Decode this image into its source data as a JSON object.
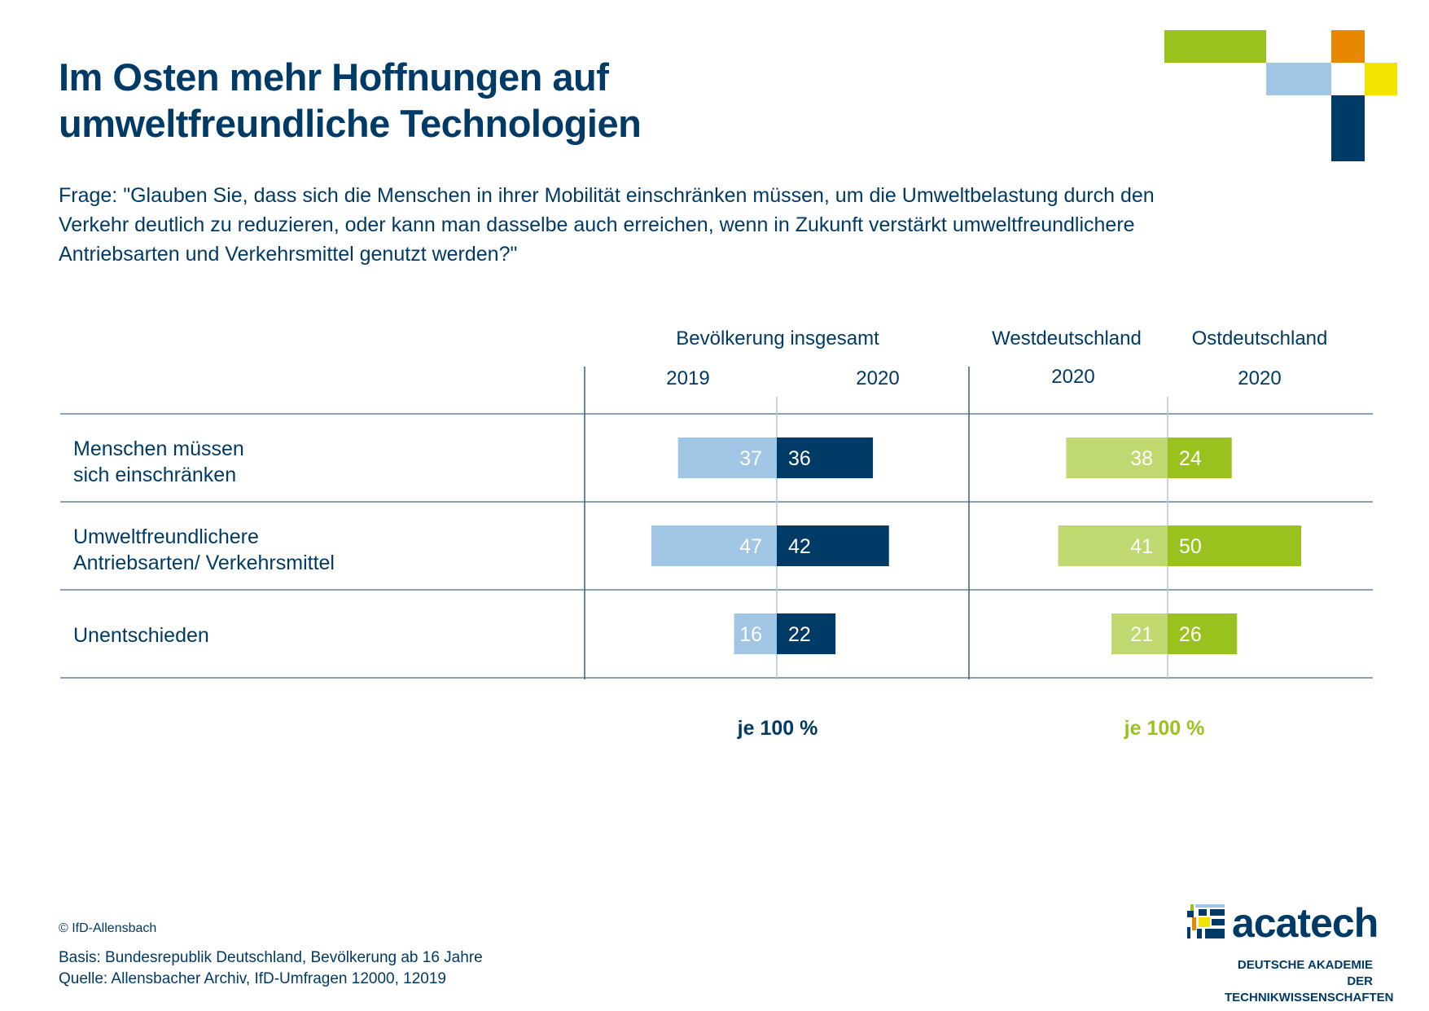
{
  "title_line1": "Im Osten mehr Hoffnungen auf",
  "title_line2": "umweltfreundliche Technologien",
  "question": "Frage: \"Glauben Sie, dass sich die Menschen in ihrer Mobilität einschränken müssen, um die Umweltbelastung durch den Verkehr deutlich zu reduzieren, oder kann man dasselbe auch erreichen, wenn in Zukunft verstärkt umweltfreundlichere Antriebsarten und Verkehrsmittel genutzt werden?\"",
  "colors": {
    "navy": "#003a66",
    "light_blue": "#a0c5e5",
    "green": "#99c21f",
    "light_green": "#bfd870",
    "orange": "#e78800",
    "yellow": "#f1e500",
    "grid": "#8aa3bb"
  },
  "chart_data": {
    "type": "bar",
    "orientation": "horizontal-diverging",
    "title": "Im Osten mehr Hoffnungen auf umweltfreundliche Technologien",
    "categories": [
      "Menschen müssen sich einschränken",
      "Umweltfreundlichere Antriebsarten/ Verkehrsmittel",
      "Unentschieden"
    ],
    "category_labels": [
      [
        "Menschen müssen",
        "sich einschränken"
      ],
      [
        "Umweltfreundlichere",
        "Antriebsarten/ Verkehrsmittel"
      ],
      [
        "Unentschieden"
      ]
    ],
    "groups": [
      {
        "name": "Bevölkerung insgesamt",
        "note": "je 100 %",
        "series": [
          {
            "name": "2019",
            "side": "left",
            "color": "#a0c5e5",
            "values": [
              37,
              47,
              16
            ]
          },
          {
            "name": "2020",
            "side": "right",
            "color": "#003a66",
            "values": [
              36,
              42,
              22
            ]
          }
        ]
      },
      {
        "name": "West/Ost",
        "note": "je 100 %",
        "series": [
          {
            "name": "Westdeutschland 2020",
            "group_label": "Westdeutschland",
            "year": "2020",
            "side": "left",
            "color": "#bfd870",
            "values": [
              38,
              41,
              21
            ]
          },
          {
            "name": "Ostdeutschland 2020",
            "group_label": "Ostdeutschland",
            "year": "2020",
            "side": "right",
            "color": "#99c21f",
            "values": [
              24,
              50,
              26
            ]
          }
        ]
      }
    ],
    "unit": "%",
    "grid": true
  },
  "headers": {
    "group1": "Bevölkerung insgesamt",
    "group1_year_left": "2019",
    "group1_year_right": "2020",
    "west": "Westdeutschland",
    "west_year": "2020",
    "east": "Ostdeutschland",
    "east_year": "2020"
  },
  "notes": {
    "left": "je 100 %",
    "right": "je 100 %"
  },
  "footer": {
    "copyright": "© IfD-Allensbach",
    "basis": "Basis: Bundesrepublik Deutschland, Bevölkerung ab 16 Jahre",
    "source": "Quelle: Allensbacher Archiv, IfD-Umfragen 12000, 12019"
  },
  "logo": {
    "name": "acatech",
    "subtitle_line1": "DEUTSCHE AKADEMIE DER",
    "subtitle_line2": "TECHNIKWISSENSCHAFTEN"
  }
}
